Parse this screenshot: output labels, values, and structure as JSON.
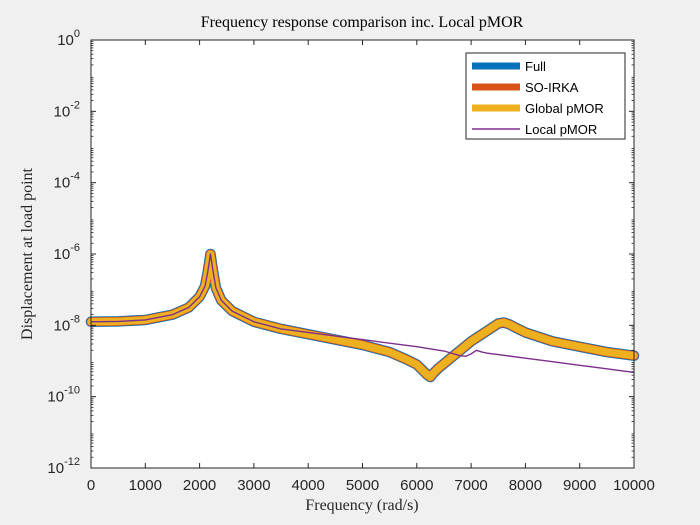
{
  "chart_data": {
    "type": "line",
    "title": "Frequency response comparison inc. Local pMOR",
    "xlabel": "Frequency (rad/s)",
    "ylabel": "Displacement at load point",
    "xlim": [
      0,
      10000
    ],
    "ylim_log10": [
      -12,
      0
    ],
    "yscale": "log",
    "x_ticks": [
      0,
      1000,
      2000,
      3000,
      4000,
      5000,
      6000,
      7000,
      8000,
      9000,
      10000
    ],
    "x_tick_labels": [
      "0",
      "1000",
      "2000",
      "3000",
      "4000",
      "5000",
      "6000",
      "7000",
      "8000",
      "9000",
      "10000"
    ],
    "y_ticks_log10": [
      -12,
      -10,
      -8,
      -6,
      -4,
      -2,
      0
    ],
    "y_tick_base": "10",
    "y_tick_exponents": [
      "-12",
      "-10",
      "-8",
      "-6",
      "-4",
      "-2",
      "0"
    ],
    "grid": false,
    "legend_position": "top-right",
    "series": [
      {
        "name": "Full",
        "color": "#0072bd",
        "style": "thick",
        "x": [
          0,
          500,
          1000,
          1500,
          1800,
          2000,
          2100,
          2150,
          2200,
          2250,
          2300,
          2400,
          2600,
          3000,
          3500,
          4000,
          4500,
          5000,
          5500,
          5800,
          6000,
          6100,
          6200,
          6250,
          6300,
          6400,
          6600,
          6800,
          7000,
          7200,
          7400,
          7500,
          7600,
          7700,
          7800,
          8000,
          8500,
          9000,
          9500,
          10000
        ],
        "values_log10": [
          -7.9,
          -7.89,
          -7.85,
          -7.7,
          -7.5,
          -7.2,
          -6.9,
          -6.5,
          -6.0,
          -6.5,
          -6.95,
          -7.3,
          -7.6,
          -7.9,
          -8.1,
          -8.25,
          -8.4,
          -8.55,
          -8.75,
          -8.95,
          -9.1,
          -9.25,
          -9.4,
          -9.45,
          -9.35,
          -9.2,
          -8.95,
          -8.7,
          -8.45,
          -8.25,
          -8.05,
          -7.95,
          -7.92,
          -7.97,
          -8.05,
          -8.2,
          -8.45,
          -8.6,
          -8.75,
          -8.85
        ]
      },
      {
        "name": "SO-IRKA",
        "color": "#d95319",
        "style": "thick",
        "x": [
          0,
          500,
          1000,
          1500,
          1800,
          2000,
          2100,
          2150,
          2200,
          2250,
          2300,
          2400,
          2600,
          3000,
          3500,
          4000,
          4500,
          5000,
          5500,
          5800,
          6000,
          6100,
          6200,
          6250,
          6300,
          6400,
          6600,
          6800,
          7000,
          7200,
          7400,
          7500,
          7600,
          7700,
          7800,
          8000,
          8500,
          9000,
          9500,
          10000
        ],
        "values_log10": [
          -7.9,
          -7.89,
          -7.85,
          -7.7,
          -7.5,
          -7.2,
          -6.9,
          -6.5,
          -6.0,
          -6.5,
          -6.95,
          -7.3,
          -7.6,
          -7.9,
          -8.1,
          -8.25,
          -8.4,
          -8.55,
          -8.75,
          -8.95,
          -9.1,
          -9.25,
          -9.4,
          -9.45,
          -9.35,
          -9.2,
          -8.95,
          -8.7,
          -8.45,
          -8.25,
          -8.05,
          -7.95,
          -7.92,
          -7.97,
          -8.05,
          -8.2,
          -8.45,
          -8.6,
          -8.75,
          -8.85
        ]
      },
      {
        "name": "Global pMOR",
        "color": "#edb120",
        "style": "thick",
        "x": [
          0,
          500,
          1000,
          1500,
          1800,
          2000,
          2100,
          2150,
          2200,
          2250,
          2300,
          2400,
          2600,
          3000,
          3500,
          4000,
          4500,
          5000,
          5500,
          5800,
          6000,
          6100,
          6200,
          6250,
          6300,
          6400,
          6600,
          6800,
          7000,
          7200,
          7400,
          7500,
          7600,
          7700,
          7800,
          8000,
          8500,
          9000,
          9500,
          10000
        ],
        "values_log10": [
          -7.9,
          -7.89,
          -7.85,
          -7.7,
          -7.5,
          -7.2,
          -6.9,
          -6.5,
          -6.0,
          -6.5,
          -6.95,
          -7.3,
          -7.6,
          -7.9,
          -8.1,
          -8.25,
          -8.4,
          -8.55,
          -8.75,
          -8.95,
          -9.1,
          -9.25,
          -9.4,
          -9.45,
          -9.35,
          -9.2,
          -8.95,
          -8.7,
          -8.45,
          -8.25,
          -8.05,
          -7.95,
          -7.92,
          -7.97,
          -8.05,
          -8.2,
          -8.45,
          -8.6,
          -8.75,
          -8.85
        ]
      },
      {
        "name": "Local pMOR",
        "color": "#7e2f8e",
        "style": "thin",
        "x": [
          0,
          500,
          1000,
          1500,
          1800,
          2000,
          2100,
          2150,
          2200,
          2250,
          2300,
          2400,
          2600,
          3000,
          3500,
          4000,
          4500,
          5000,
          5500,
          6000,
          6500,
          6800,
          6900,
          7000,
          7100,
          7200,
          7300,
          7500,
          8000,
          8500,
          9000,
          9500,
          10000
        ],
        "values_log10": [
          -7.9,
          -7.89,
          -7.85,
          -7.7,
          -7.5,
          -7.2,
          -6.9,
          -6.5,
          -6.0,
          -6.5,
          -6.95,
          -7.3,
          -7.6,
          -7.9,
          -8.1,
          -8.2,
          -8.3,
          -8.4,
          -8.5,
          -8.6,
          -8.72,
          -8.85,
          -8.87,
          -8.8,
          -8.7,
          -8.75,
          -8.78,
          -8.82,
          -8.92,
          -9.02,
          -9.12,
          -9.22,
          -9.32
        ]
      }
    ]
  }
}
